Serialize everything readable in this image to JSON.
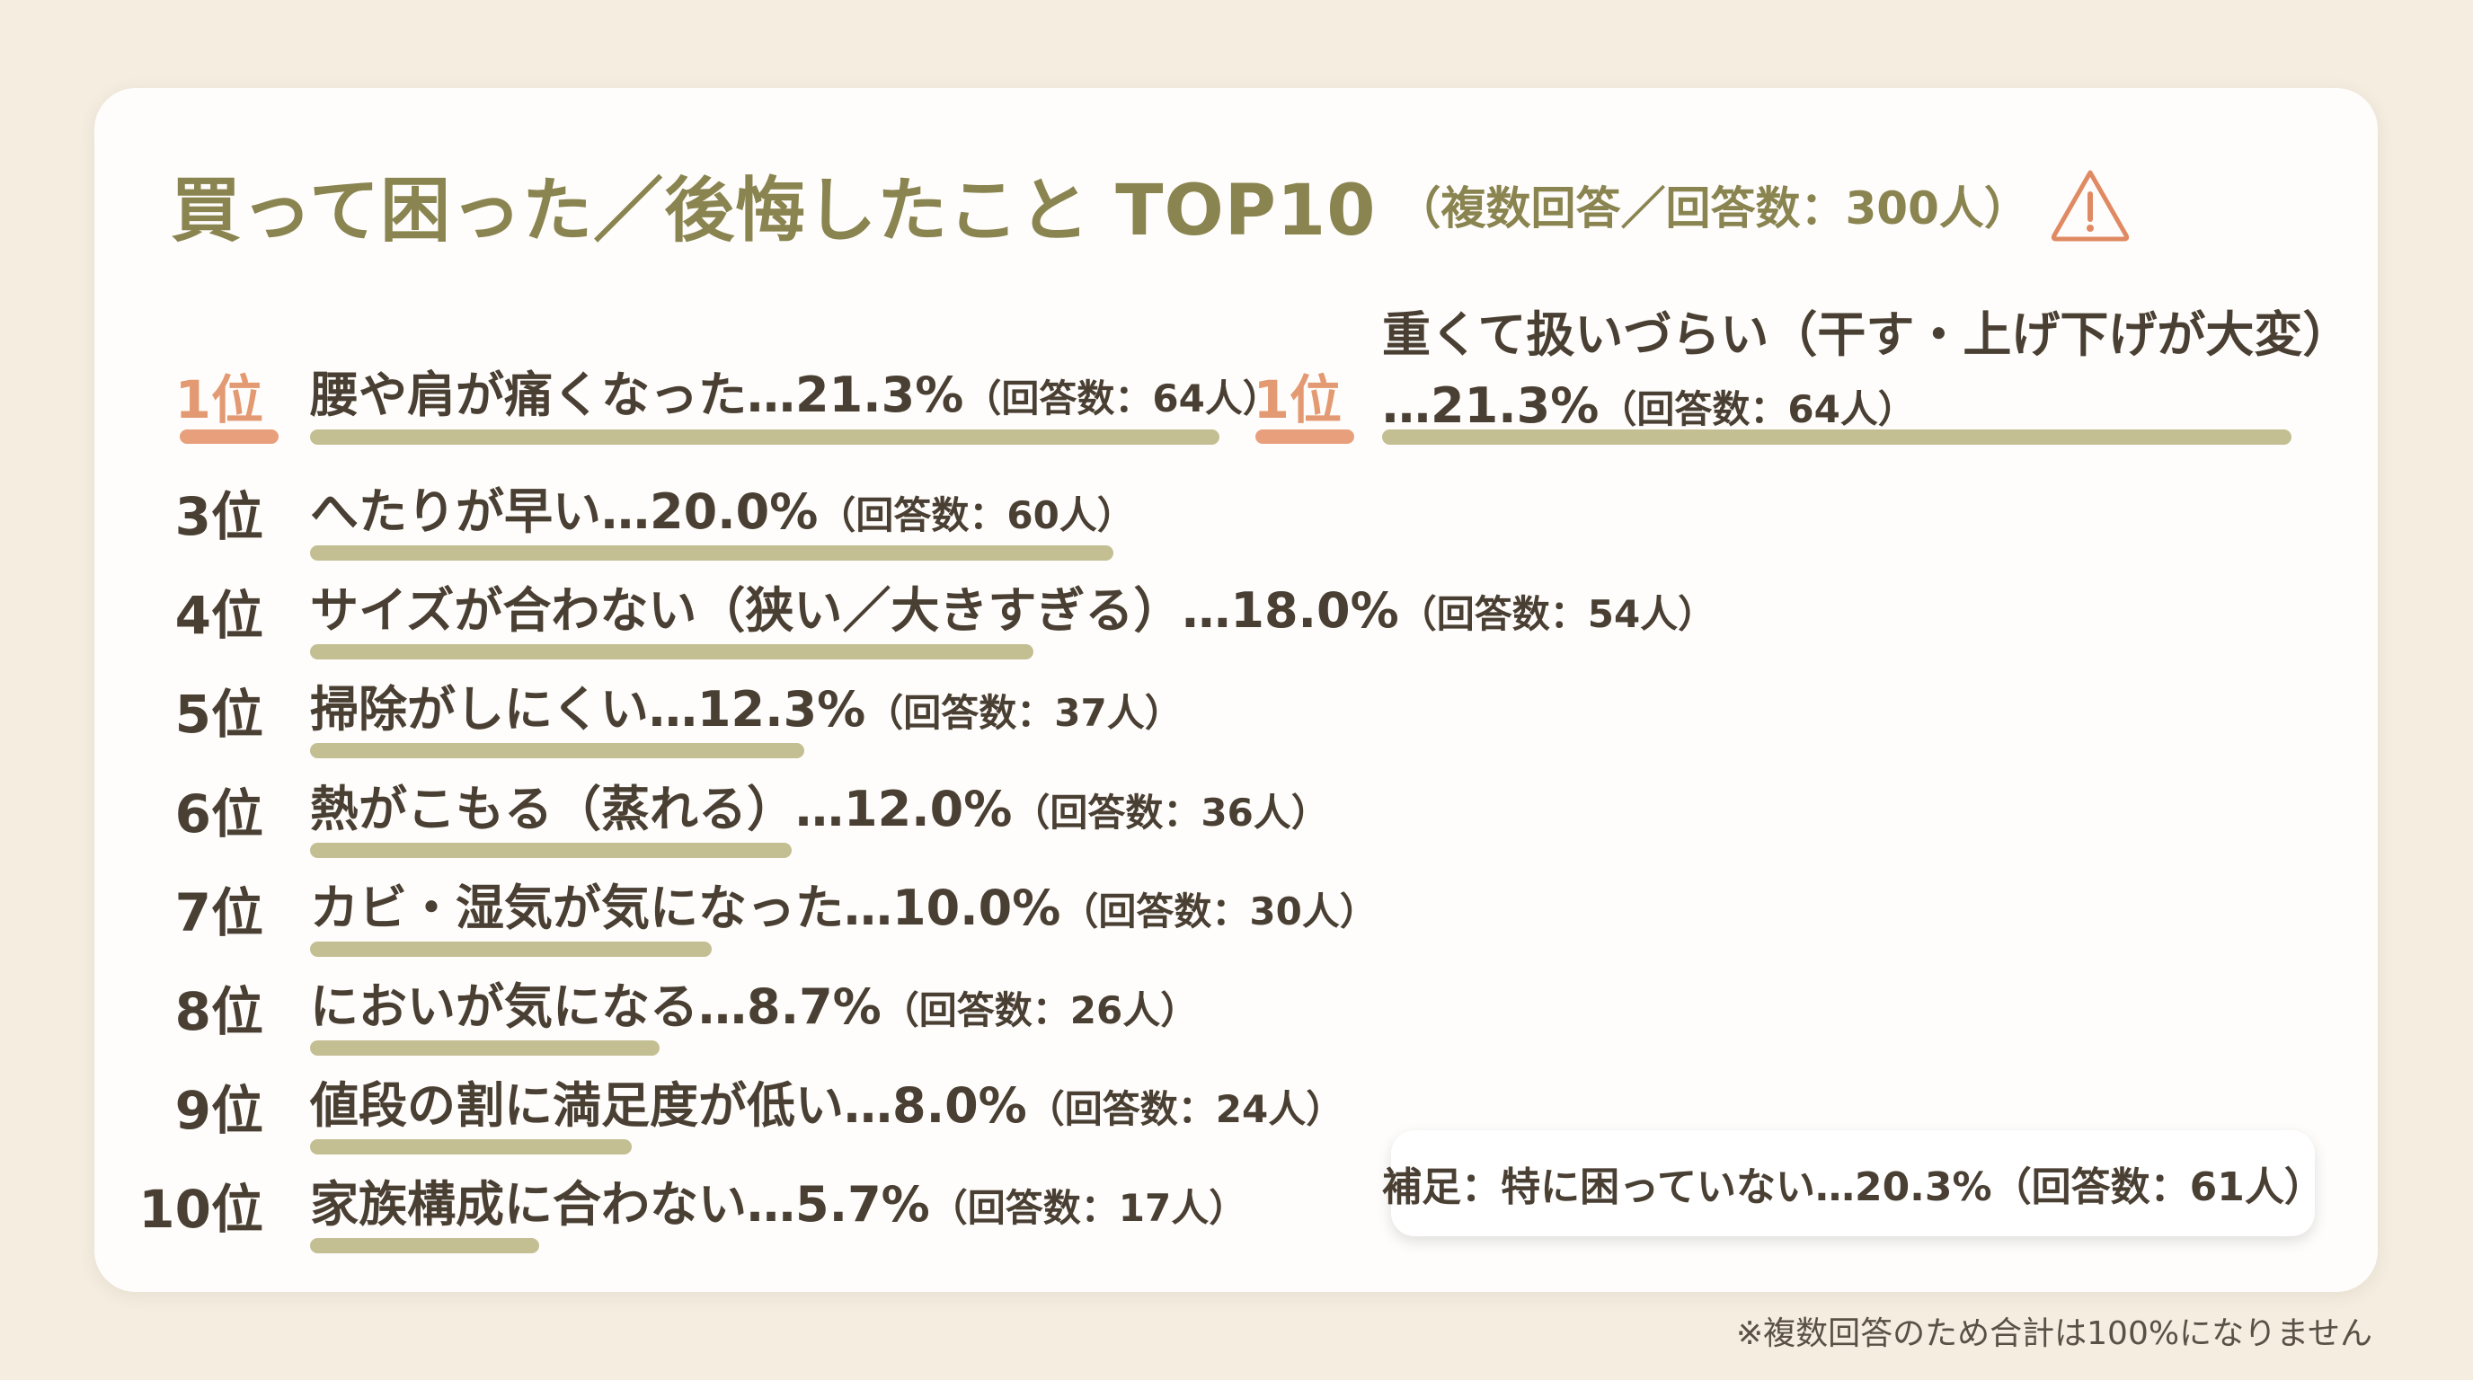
{
  "title": {
    "main": "買って困った／後悔したこと TOP10",
    "sub": "（複数回答／回答数：300人）",
    "icon": "warning-icon"
  },
  "colors": {
    "title": "#8a8450",
    "bar": "#c3bf93",
    "rank_top": "#e39a73",
    "rank_bar": "#e8a07c",
    "text": "#4a3f33"
  },
  "chart_data": {
    "type": "bar",
    "orientation": "horizontal",
    "unit": "%",
    "items": [
      {
        "rank": "1位",
        "label": "腰や肩が痛くなった",
        "value": 21.3,
        "pct_text": "…21.3%",
        "count_text": "（回答数：64人）"
      },
      {
        "rank": "1位",
        "label": "重くて扱いづらい（干す・上げ下げが大変）",
        "value": 21.3,
        "pct_text": "…21.3%",
        "count_text": "（回答数：64人）"
      },
      {
        "rank": "3位",
        "label": "へたりが早い",
        "value": 20.0,
        "pct_text": "…20.0%",
        "count_text": "（回答数：60人）"
      },
      {
        "rank": "4位",
        "label": "サイズが合わない（狭い／大きすぎる）",
        "value": 18.0,
        "pct_text": "…18.0%",
        "count_text": "（回答数：54人）"
      },
      {
        "rank": "5位",
        "label": "掃除がしにくい",
        "value": 12.3,
        "pct_text": "…12.3%",
        "count_text": "（回答数：37人）"
      },
      {
        "rank": "6位",
        "label": "熱がこもる（蒸れる）",
        "value": 12.0,
        "pct_text": "…12.0%",
        "count_text": "（回答数：36人）"
      },
      {
        "rank": "7位",
        "label": "カビ・湿気が気になった",
        "value": 10.0,
        "pct_text": "…10.0%",
        "count_text": "（回答数：30人）"
      },
      {
        "rank": "8位",
        "label": "においが気になる",
        "value": 8.7,
        "pct_text": "…8.7%",
        "count_text": "（回答数：26人）"
      },
      {
        "rank": "9位",
        "label": "値段の割に満足度が低い",
        "value": 8.0,
        "pct_text": "…8.0%",
        "count_text": "（回答数：24人）"
      },
      {
        "rank": "10位",
        "label": "家族構成に合わない",
        "value": 5.7,
        "pct_text": "…5.7%",
        "count_text": "（回答数：17人）"
      }
    ]
  },
  "note": "補足：特に困っていない…20.3%（回答数：61人）",
  "footnote": "※複数回答のため合計は100%になりません"
}
